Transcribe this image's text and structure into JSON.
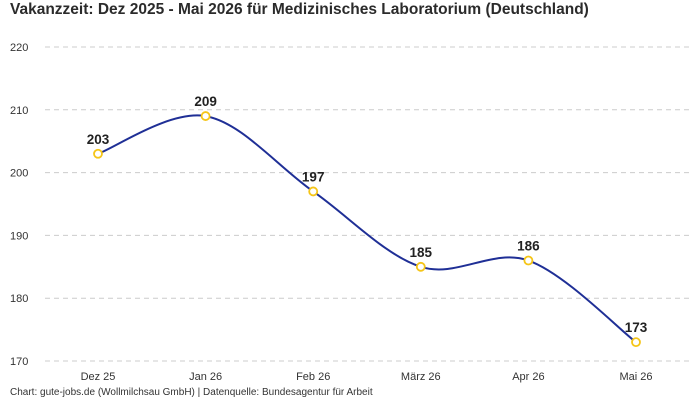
{
  "chart_data": {
    "type": "line",
    "title": "Vakanzzeit: Dez 2025 - Mai 2026 für Medizinisches Laboratorium (Deutschland)",
    "categories": [
      "Dez 25",
      "Jan 26",
      "Feb 26",
      "März 26",
      "Apr 26",
      "Mai 26"
    ],
    "series": [
      {
        "values": [
          203,
          209,
          197,
          185,
          186,
          173
        ]
      }
    ],
    "xlabel": "",
    "ylabel": "",
    "ylim": [
      170,
      220
    ],
    "yticks": [
      170,
      180,
      190,
      200,
      210,
      220
    ],
    "grid": true,
    "legend": "none",
    "colors": {
      "line": "#1f2f96",
      "marker_stroke": "#f5c518",
      "marker_fill": "#ffffff",
      "grid": "#cccccc"
    }
  },
  "footer": "Chart: gute-jobs.de (Wollmilchsau GmbH) | Datenquelle: Bundesagentur für Arbeit"
}
